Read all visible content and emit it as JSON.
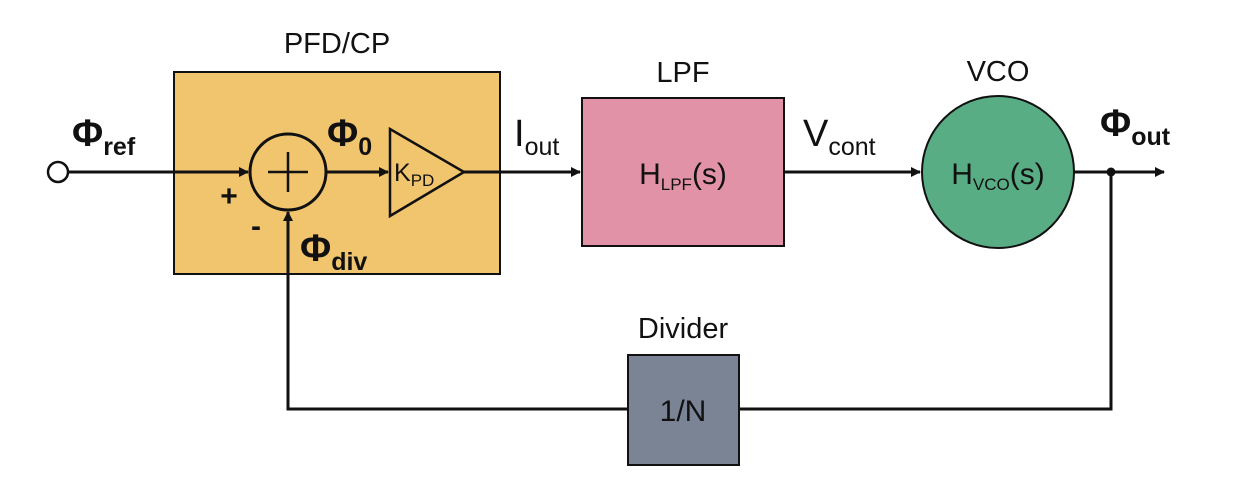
{
  "pfd_cp": {
    "title": "PFD/CP",
    "color": "#F1C56E",
    "summing_junction": {
      "plus": "+",
      "minus": "-"
    },
    "gain": {
      "main": "K",
      "sub": "PD"
    }
  },
  "lpf": {
    "title": "LPF",
    "color": "#E192A7",
    "transfer_main": "H",
    "transfer_sub": "LPF",
    "transfer_arg": "(s)"
  },
  "vco": {
    "title": "VCO",
    "color": "#59AD84",
    "transfer_main": "H",
    "transfer_sub": "VCO",
    "transfer_arg": "(s)"
  },
  "divider": {
    "title": "Divider",
    "color": "#7A8494",
    "ratio": "1/N"
  },
  "signals": {
    "phi_ref": {
      "main": "Φ",
      "sub": "ref"
    },
    "phi_0": {
      "main": "Φ",
      "sub": "0"
    },
    "phi_div": {
      "main": "Φ",
      "sub": "div"
    },
    "i_out": {
      "main": "I",
      "sub": "out"
    },
    "v_cont": {
      "main": "V",
      "sub": "cont"
    },
    "phi_out": {
      "main": "Φ",
      "sub": "out"
    }
  }
}
